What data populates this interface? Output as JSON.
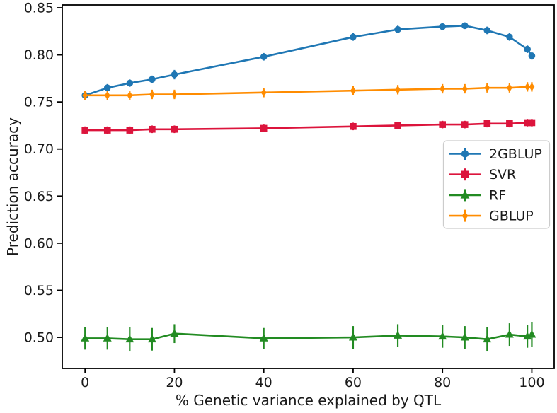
{
  "figure": {
    "background": "#ffffff",
    "axis_color": "#000000",
    "text_color": "#1a1a1a"
  },
  "chart_data": {
    "type": "line",
    "title": "",
    "xlabel": "% Genetic variance explained by QTL",
    "ylabel": "Prediction accuracy",
    "x": [
      0,
      5,
      10,
      15,
      20,
      40,
      60,
      70,
      80,
      85,
      90,
      95,
      99,
      100
    ],
    "xticks": [
      0,
      20,
      40,
      60,
      80,
      100
    ],
    "yticks": [
      0.5,
      0.55,
      0.6,
      0.65,
      0.7,
      0.75,
      0.8,
      0.85
    ],
    "xlim": [
      -5.1,
      105.0
    ],
    "ylim": [
      0.467,
      0.853
    ],
    "grid": false,
    "legend_position": "center-right",
    "series": [
      {
        "name": "2GBLUP",
        "color": "#1f77b4",
        "marker": "circle",
        "values": [
          0.757,
          0.765,
          0.77,
          0.774,
          0.779,
          0.798,
          0.819,
          0.827,
          0.83,
          0.831,
          0.826,
          0.819,
          0.806,
          0.799
        ],
        "errors": [
          0.005,
          0.004,
          0.004,
          0.004,
          0.005,
          0.004,
          0.004,
          0.004,
          0.003,
          0.003,
          0.004,
          0.004,
          0.004,
          0.004
        ]
      },
      {
        "name": "SVR",
        "color": "#DC143C",
        "marker": "square",
        "values": [
          0.72,
          0.72,
          0.72,
          0.721,
          0.721,
          0.722,
          0.724,
          0.725,
          0.726,
          0.726,
          0.727,
          0.727,
          0.728,
          0.728
        ],
        "errors": [
          0.004,
          0.004,
          0.004,
          0.004,
          0.004,
          0.004,
          0.004,
          0.004,
          0.004,
          0.004,
          0.004,
          0.004,
          0.004,
          0.004
        ]
      },
      {
        "name": "RF",
        "color": "#228B22",
        "marker": "triangle",
        "values": [
          0.499,
          0.499,
          0.498,
          0.498,
          0.504,
          0.499,
          0.5,
          0.502,
          0.501,
          0.5,
          0.498,
          0.503,
          0.501,
          0.503
        ],
        "errors": [
          0.012,
          0.012,
          0.013,
          0.012,
          0.01,
          0.011,
          0.012,
          0.012,
          0.012,
          0.012,
          0.013,
          0.012,
          0.012,
          0.013
        ]
      },
      {
        "name": "GBLUP",
        "color": "#FF8C00",
        "marker": "diamond",
        "values": [
          0.757,
          0.757,
          0.757,
          0.758,
          0.758,
          0.76,
          0.762,
          0.763,
          0.764,
          0.764,
          0.765,
          0.765,
          0.766,
          0.766
        ],
        "errors": [
          0.005,
          0.005,
          0.005,
          0.005,
          0.005,
          0.005,
          0.005,
          0.005,
          0.005,
          0.005,
          0.005,
          0.005,
          0.005,
          0.005
        ]
      }
    ]
  }
}
